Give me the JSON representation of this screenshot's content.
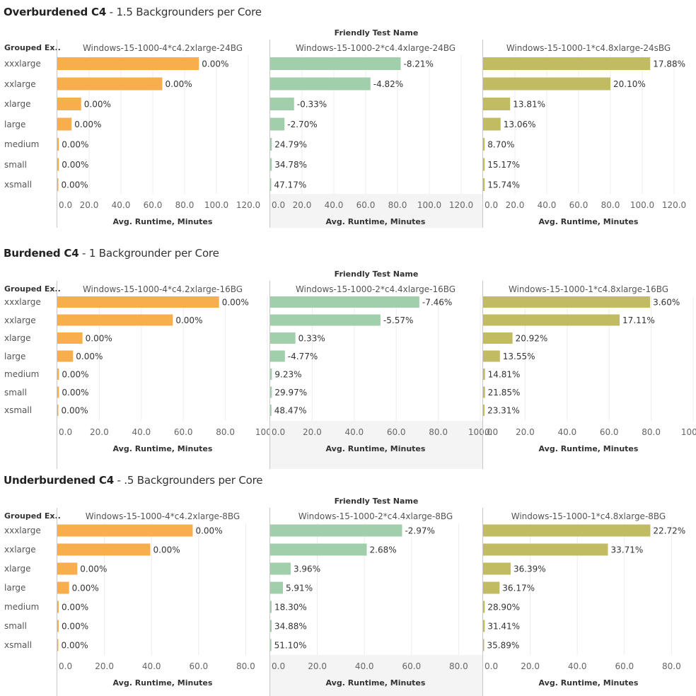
{
  "chart_data": [
    {
      "type": "bar",
      "title_bold": "Overburdened C4",
      "title_rest": " - 1.5 Backgrounders per Core",
      "column_header": "Friendly Test Name",
      "row_header": "Grouped Ex..",
      "xlabel": "Avg. Runtime, Minutes",
      "xlim": [
        0,
        130
      ],
      "ticks": [
        "0.0",
        "20.0",
        "40.0",
        "60.0",
        "80.0",
        "100.0",
        "120.0"
      ],
      "tick_values": [
        0,
        20,
        40,
        60,
        80,
        100,
        120
      ],
      "categories": [
        "xxxlarge",
        "xxlarge",
        "xlarge",
        "large",
        "medium",
        "small",
        "xsmall"
      ],
      "series": [
        {
          "name": "Windows-15-1000-4*c4.2xlarge-24BG",
          "color": "#f9ae4e",
          "values": [
            89,
            66,
            15,
            9,
            1,
            1,
            0.3
          ],
          "labels": [
            "0.00%",
            "0.00%",
            "0.00%",
            "0.00%",
            "0.00%",
            "0.00%",
            "0.00%"
          ]
        },
        {
          "name": "Windows-15-1000-2*c4.4xlarge-24BG",
          "color": "#a2cfab",
          "values": [
            82,
            63,
            15,
            9,
            1,
            1,
            0.6
          ],
          "labels": [
            "-8.21%",
            "-4.82%",
            "-0.33%",
            "-2.70%",
            "24.79%",
            "34.78%",
            "47.17%"
          ]
        },
        {
          "name": "Windows-15-1000-1*c4.8xlarge-24sBG",
          "color": "#c1bb62",
          "values": [
            105,
            80,
            17,
            11,
            1,
            1,
            1
          ],
          "labels": [
            "17.88%",
            "20.10%",
            "13.81%",
            "13.06%",
            "8.70%",
            "15.17%",
            "15.74%"
          ]
        }
      ]
    },
    {
      "type": "bar",
      "title_bold": "Burdened C4",
      "title_rest": " - 1 Backgrounder per Core",
      "column_header": "Friendly Test Name",
      "row_header": "Grouped Ex..",
      "xlabel": "Avg. Runtime, Minutes",
      "xlim": [
        0,
        100
      ],
      "ticks": [
        "0.0",
        "20.0",
        "40.0",
        "60.0",
        "80.0",
        "100.0"
      ],
      "tick_values": [
        0,
        20,
        40,
        60,
        80,
        100
      ],
      "categories": [
        "xxxlarge",
        "xxlarge",
        "xlarge",
        "large",
        "medium",
        "small",
        "xsmall"
      ],
      "series": [
        {
          "name": "Windows-15-1000-4*c4.2xlarge-16BG",
          "color": "#f9ae4e",
          "values": [
            77,
            55,
            12,
            7.5,
            0.8,
            0.8,
            0.2
          ],
          "labels": [
            "0.00%",
            "0.00%",
            "0.00%",
            "0.00%",
            "0.00%",
            "0.00%",
            "0.00%"
          ]
        },
        {
          "name": "Windows-15-1000-2*c4.4xlarge-16BG",
          "color": "#a2cfab",
          "values": [
            71,
            52.5,
            12,
            7,
            0.8,
            0.8,
            0.6
          ],
          "labels": [
            "-7.46%",
            "-5.57%",
            "0.33%",
            "-4.77%",
            "9.23%",
            "29.97%",
            "48.47%"
          ]
        },
        {
          "name": "Windows-15-1000-1*c4.8xlarge-16BG",
          "color": "#c1bb62",
          "values": [
            79.5,
            65,
            14,
            8,
            0.9,
            0.9,
            0.7
          ],
          "labels": [
            "3.60%",
            "17.11%",
            "20.92%",
            "13.55%",
            "14.81%",
            "21.85%",
            "23.31%"
          ]
        }
      ]
    },
    {
      "type": "bar",
      "title_bold": "Underburdened C4",
      "title_rest": " - .5 Backgrounders per Core",
      "column_header": "Friendly Test Name",
      "row_header": "Grouped Ex..",
      "xlabel": "Avg. Runtime, Minutes",
      "xlim": [
        0,
        90
      ],
      "ticks": [
        "0.0",
        "20.0",
        "40.0",
        "60.0",
        "80.0"
      ],
      "tick_values": [
        0,
        20,
        40,
        60,
        80
      ],
      "categories": [
        "xxxlarge",
        "xxlarge",
        "xlarge",
        "large",
        "medium",
        "small",
        "xsmall"
      ],
      "series": [
        {
          "name": "Windows-15-1000-4*c4.2xlarge-8BG",
          "color": "#f9ae4e",
          "values": [
            57.5,
            39.5,
            8.5,
            5,
            0.6,
            0.6,
            0.2
          ],
          "labels": [
            "0.00%",
            "0.00%",
            "0.00%",
            "0.00%",
            "0.00%",
            "0.00%",
            "0.00%"
          ]
        },
        {
          "name": "Windows-15-1000-2*c4.4xlarge-8BG",
          "color": "#a2cfab",
          "values": [
            56,
            41,
            8.7,
            5.4,
            0.6,
            0.6,
            0.5
          ],
          "labels": [
            "-2.97%",
            "2.68%",
            "3.96%",
            "5.91%",
            "18.30%",
            "34.88%",
            "51.10%"
          ]
        },
        {
          "name": "Windows-15-1000-1*c4.8xlarge-8BG",
          "color": "#c1bb62",
          "values": [
            71,
            53,
            11.7,
            7,
            0.7,
            0.7,
            0.4
          ],
          "labels": [
            "22.72%",
            "33.71%",
            "36.39%",
            "36.17%",
            "28.90%",
            "31.41%",
            "35.89%"
          ]
        }
      ]
    }
  ]
}
